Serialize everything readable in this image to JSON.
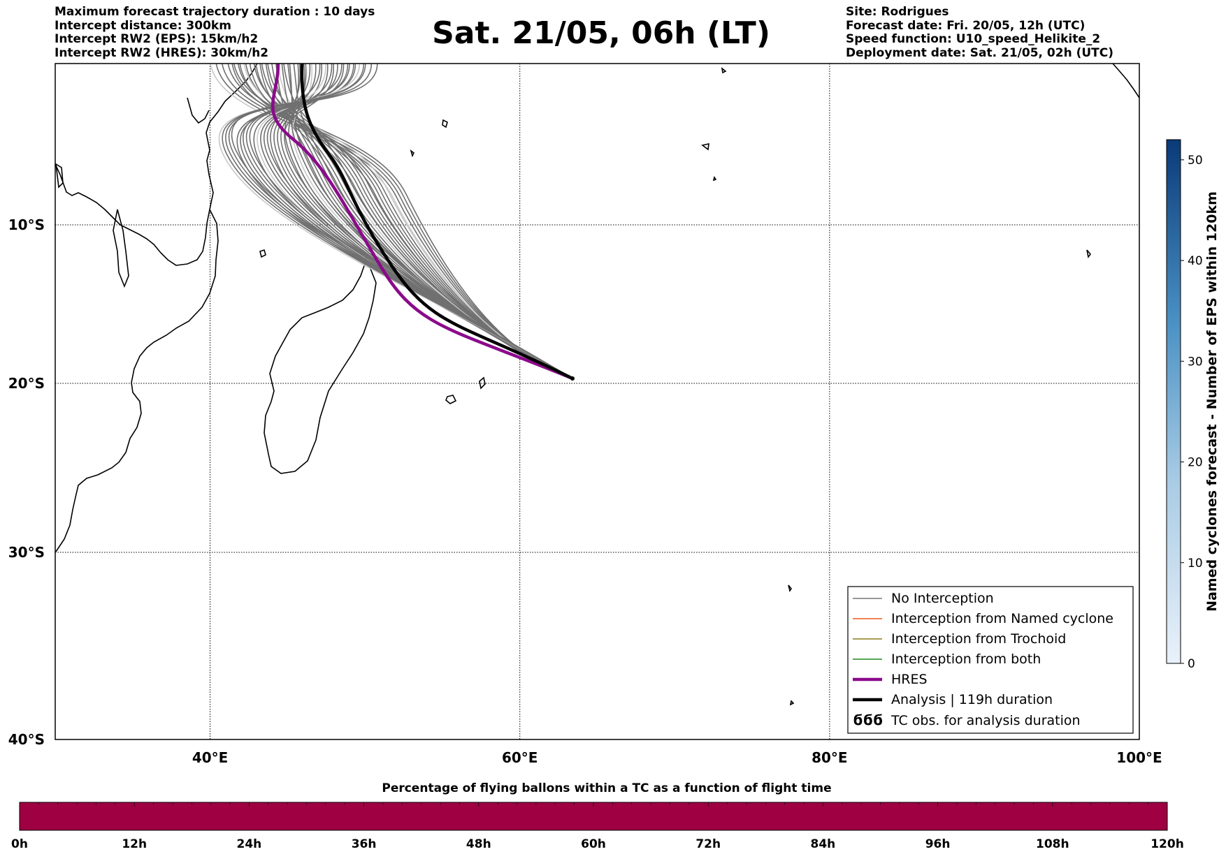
{
  "header": {
    "left_lines": [
      "Maximum forecast trajectory duration : 10 days",
      "Intercept distance: 300km",
      "Intercept RW2 (EPS):  15km/h2",
      "Intercept RW2 (HRES): 30km/h2"
    ],
    "title": "Sat. 21/05, 06h (LT)",
    "right_lines": [
      "Site: Rodrigues",
      "Forecast date: Fri. 20/05, 12h (UTC)",
      "Speed function: U10_speed_Helikite_2",
      "Deployment date: Sat. 21/05, 02h (UTC)"
    ]
  },
  "map": {
    "lon_ticks": [
      "40°E",
      "60°E",
      "80°E",
      "100°E"
    ],
    "lat_ticks": [
      "10°S",
      "20°S",
      "30°S",
      "40°S"
    ],
    "lon_values": [
      40,
      60,
      80,
      100
    ],
    "lat_values": [
      -10,
      -20,
      -30,
      -40
    ],
    "lon_range": [
      30,
      100
    ],
    "lat_range": [
      -40,
      0.5
    ],
    "grid": "dotted",
    "release_point": {
      "lon": 63.4,
      "lat": -19.7
    },
    "colors": {
      "no_interception": "#777777",
      "named_cyclone": "#e8581c",
      "trochoid": "#8a7a1a",
      "both": "#1f8a1f",
      "hres": "#8b0a8b",
      "analysis": "#000000"
    }
  },
  "legend": {
    "position": "lower-right",
    "items": [
      {
        "label": "No Interception",
        "icon": "gray-line"
      },
      {
        "label": "Interception from Named cyclone",
        "icon": "orange-line"
      },
      {
        "label": "Interception from Trochoid",
        "icon": "olive-line"
      },
      {
        "label": "Interception from both",
        "icon": "green-line"
      },
      {
        "label": "HRES",
        "icon": "purple-line"
      },
      {
        "label": "Analysis | 119h duration",
        "icon": "black-line"
      },
      {
        "label": "TC obs. for analysis duration",
        "icon": "cyclone-symbols"
      }
    ],
    "tc_symbol": "ϭϭϭ"
  },
  "colorbar_right": {
    "label": "Named cyclones forecast - Number of EPS within 120km",
    "ticks": [
      "0",
      "10",
      "20",
      "30",
      "40",
      "50"
    ],
    "range": [
      0,
      52
    ],
    "colors": [
      "#e6eef8",
      "#08306b"
    ]
  },
  "colorbar_bottom": {
    "title": "Percentage of flying ballons within a TC as a function of flight time",
    "ticks": [
      "0h",
      "12h",
      "24h",
      "36h",
      "48h",
      "60h",
      "72h",
      "84h",
      "96h",
      "108h",
      "120h"
    ],
    "fill_color": "#9e0041"
  }
}
